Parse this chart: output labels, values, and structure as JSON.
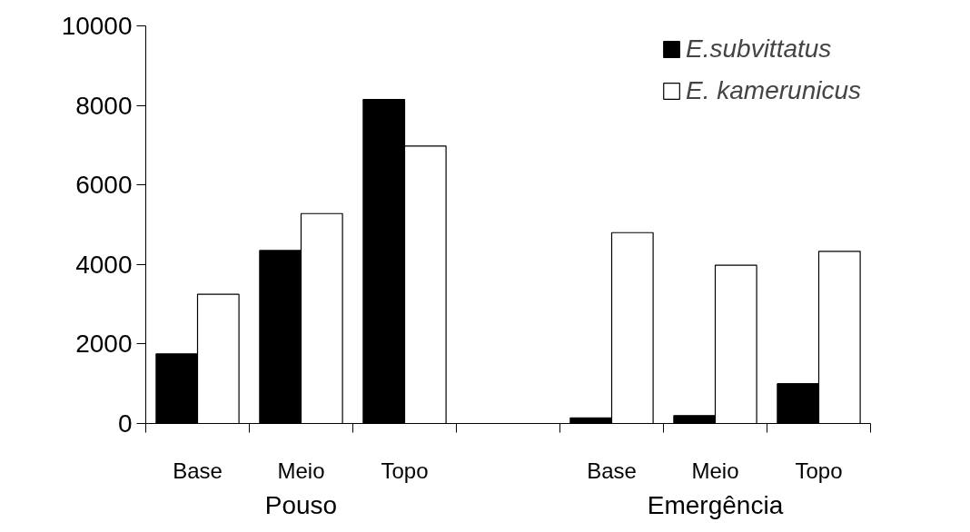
{
  "chart_data": {
    "type": "bar",
    "categories": [
      "Base",
      "Meio",
      "Topo",
      null,
      "Base",
      "Meio",
      "Topo"
    ],
    "series": [
      {
        "name": "E.subvittatus",
        "color": "#000000",
        "values": [
          1750,
          4350,
          8150,
          null,
          140,
          200,
          1000
        ]
      },
      {
        "name": "E. kamerunicus",
        "color": "#ffffff",
        "values": [
          3250,
          5280,
          6980,
          null,
          4800,
          3980,
          4330
        ]
      }
    ],
    "annotations": [
      "Pouso",
      "Emergência"
    ],
    "ylim": [
      0,
      10000
    ],
    "yticks": [
      0,
      2000,
      4000,
      6000,
      8000,
      10000
    ],
    "grid": false,
    "legend": "top right"
  }
}
